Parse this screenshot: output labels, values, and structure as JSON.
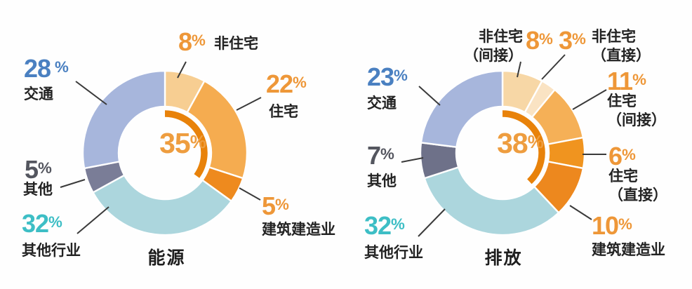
{
  "percent_symbol": "%",
  "colors": {
    "leader_line": "#3a3a3a",
    "label_text": "#232323",
    "slice_border": "#ffffff",
    "highlight_arc": "#e8820a",
    "center_text": "#ee9d3f"
  },
  "chart_data": [
    {
      "type": "pie",
      "variant": "donut",
      "title": "能源",
      "center_label": "35%",
      "center": {
        "num": "35",
        "pct": "%"
      },
      "highlight_arc": {
        "value": 35,
        "color": "#e8820a"
      },
      "legend_position": "around",
      "slices": [
        {
          "id": "non-residential",
          "name_lines": [
            "非住宅"
          ],
          "value": 8,
          "num": "8",
          "color": "#f7ce92",
          "num_color": "#ee9738"
        },
        {
          "id": "residential",
          "name_lines": [
            "住宅"
          ],
          "value": 22,
          "num": "22",
          "color": "#f5ac50",
          "num_color": "#ee9738"
        },
        {
          "id": "building-construction",
          "name_lines": [
            "建筑建造业"
          ],
          "value": 5,
          "num": "5",
          "color": "#ee8a1e",
          "num_color": "#ee9738"
        },
        {
          "id": "other-industries",
          "name_lines": [
            "其他行业"
          ],
          "value": 32,
          "num": "32",
          "color": "#acd6dd",
          "num_color": "#3dbec5"
        },
        {
          "id": "other",
          "name_lines": [
            "其他"
          ],
          "value": 5,
          "num": "5",
          "color": "#7a7d97",
          "num_color": "#54565f"
        },
        {
          "id": "transport",
          "name_lines": [
            "交通"
          ],
          "value": 28,
          "num": "28",
          "color": "#a7b6dc",
          "num_color": "#4a80c1"
        }
      ]
    },
    {
      "type": "pie",
      "variant": "donut",
      "title": "排放",
      "center_label": "38%",
      "center": {
        "num": "38",
        "pct": "%"
      },
      "highlight_arc": {
        "value": 38,
        "color": "#e8820a"
      },
      "legend_position": "around",
      "slices": [
        {
          "id": "non-residential-indirect",
          "name_lines": [
            "非住宅",
            "（间接）"
          ],
          "value": 8,
          "num": "8",
          "color": "#f7d7a6",
          "num_color": "#ee9738"
        },
        {
          "id": "non-residential-direct",
          "name_lines": [
            "非住宅",
            "（直接）"
          ],
          "value": 3,
          "num": "3",
          "color": "#fae3c3",
          "num_color": "#ee9738"
        },
        {
          "id": "residential-indirect",
          "name_lines": [
            "住宅",
            "（间接）"
          ],
          "value": 11,
          "num": "11",
          "color": "#f5b057",
          "num_color": "#ee9738"
        },
        {
          "id": "residential-direct",
          "name_lines": [
            "住宅",
            "（直接）"
          ],
          "value": 6,
          "num": "6",
          "color": "#f0941f",
          "num_color": "#ee9738"
        },
        {
          "id": "building-construction",
          "name_lines": [
            "建筑建造业"
          ],
          "value": 10,
          "num": "10",
          "color": "#ed881e",
          "num_color": "#ee9738"
        },
        {
          "id": "other-industries",
          "name_lines": [
            "其他行业"
          ],
          "value": 32,
          "num": "32",
          "color": "#acd6dd",
          "num_color": "#3dbec5"
        },
        {
          "id": "other",
          "name_lines": [
            "其他"
          ],
          "value": 7,
          "num": "7",
          "color": "#6e7189",
          "num_color": "#54565f"
        },
        {
          "id": "transport",
          "name_lines": [
            "交通"
          ],
          "value": 23,
          "num": "23",
          "color": "#a7b6dc",
          "num_color": "#4a80c1"
        }
      ]
    }
  ]
}
